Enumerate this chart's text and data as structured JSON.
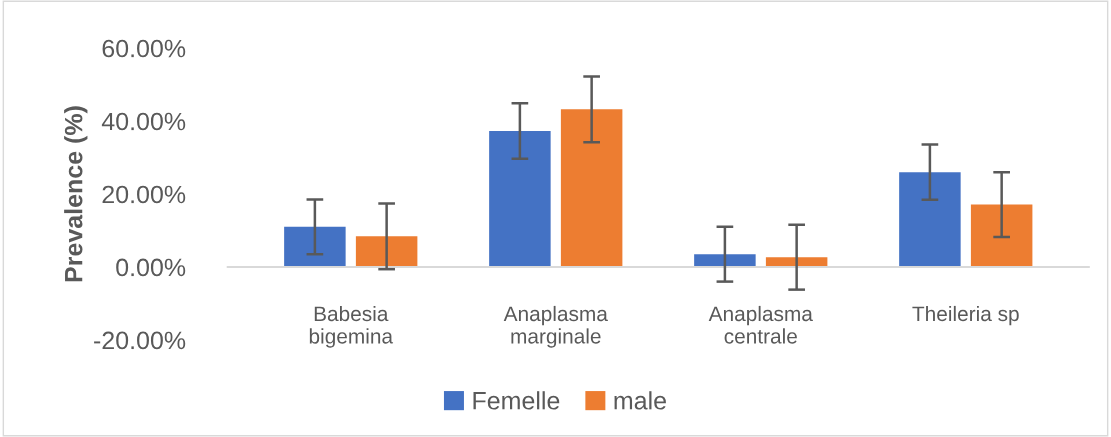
{
  "chart_data": {
    "type": "bar",
    "ylabel": "Prevalence (%)",
    "categories": [
      "Babesia\nbigemina",
      "Anaplasma\nmarginale",
      "Anaplasma\ncentrale",
      "Theileria sp"
    ],
    "series": [
      {
        "name": "Femelle",
        "color": "#4472c4",
        "values": [
          11.0,
          37.3,
          3.5,
          26.0
        ],
        "errors": [
          7.5,
          7.6,
          7.5,
          7.6
        ]
      },
      {
        "name": "male",
        "color": "#ed7d31",
        "values": [
          8.4,
          43.2,
          2.7,
          17.1
        ],
        "errors": [
          9.0,
          9.0,
          8.9,
          8.9
        ]
      }
    ],
    "ylim": [
      -20,
      60
    ],
    "yticks": [
      {
        "value": -20,
        "label": "-20.00%"
      },
      {
        "value": 0,
        "label": "0.00%"
      },
      {
        "value": 20,
        "label": "20.00%"
      },
      {
        "value": 40,
        "label": "40.00%"
      },
      {
        "value": 60,
        "label": "60.00%"
      }
    ],
    "grid": false,
    "legend": "bottom"
  }
}
